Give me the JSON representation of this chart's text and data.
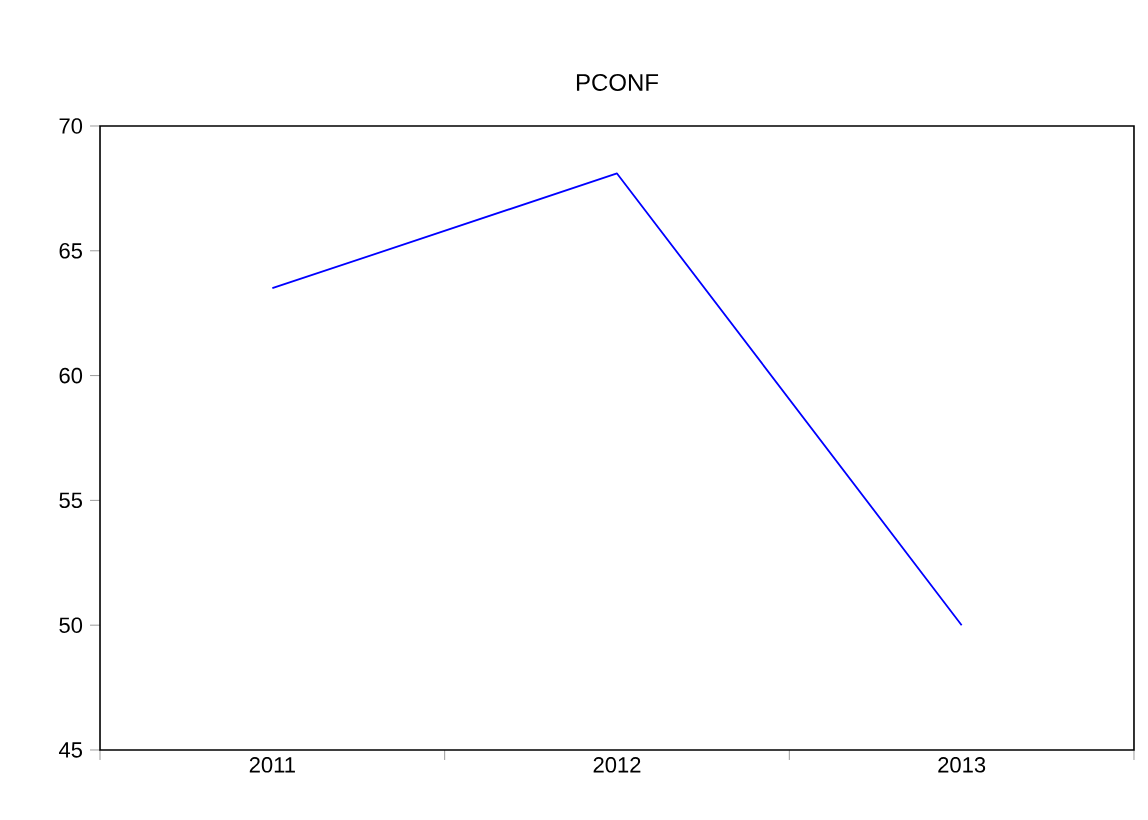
{
  "chart_data": {
    "type": "line",
    "title": "PCONF",
    "categories": [
      "2011",
      "2012",
      "2013"
    ],
    "series": [
      {
        "color": "#0000ff",
        "values": [
          63.5,
          68.1,
          50.0
        ]
      }
    ],
    "ylim": [
      45,
      70
    ],
    "yticks": [
      45,
      50,
      55,
      60,
      65,
      70
    ],
    "grid": false,
    "marker": "none",
    "line_style": "solid"
  }
}
